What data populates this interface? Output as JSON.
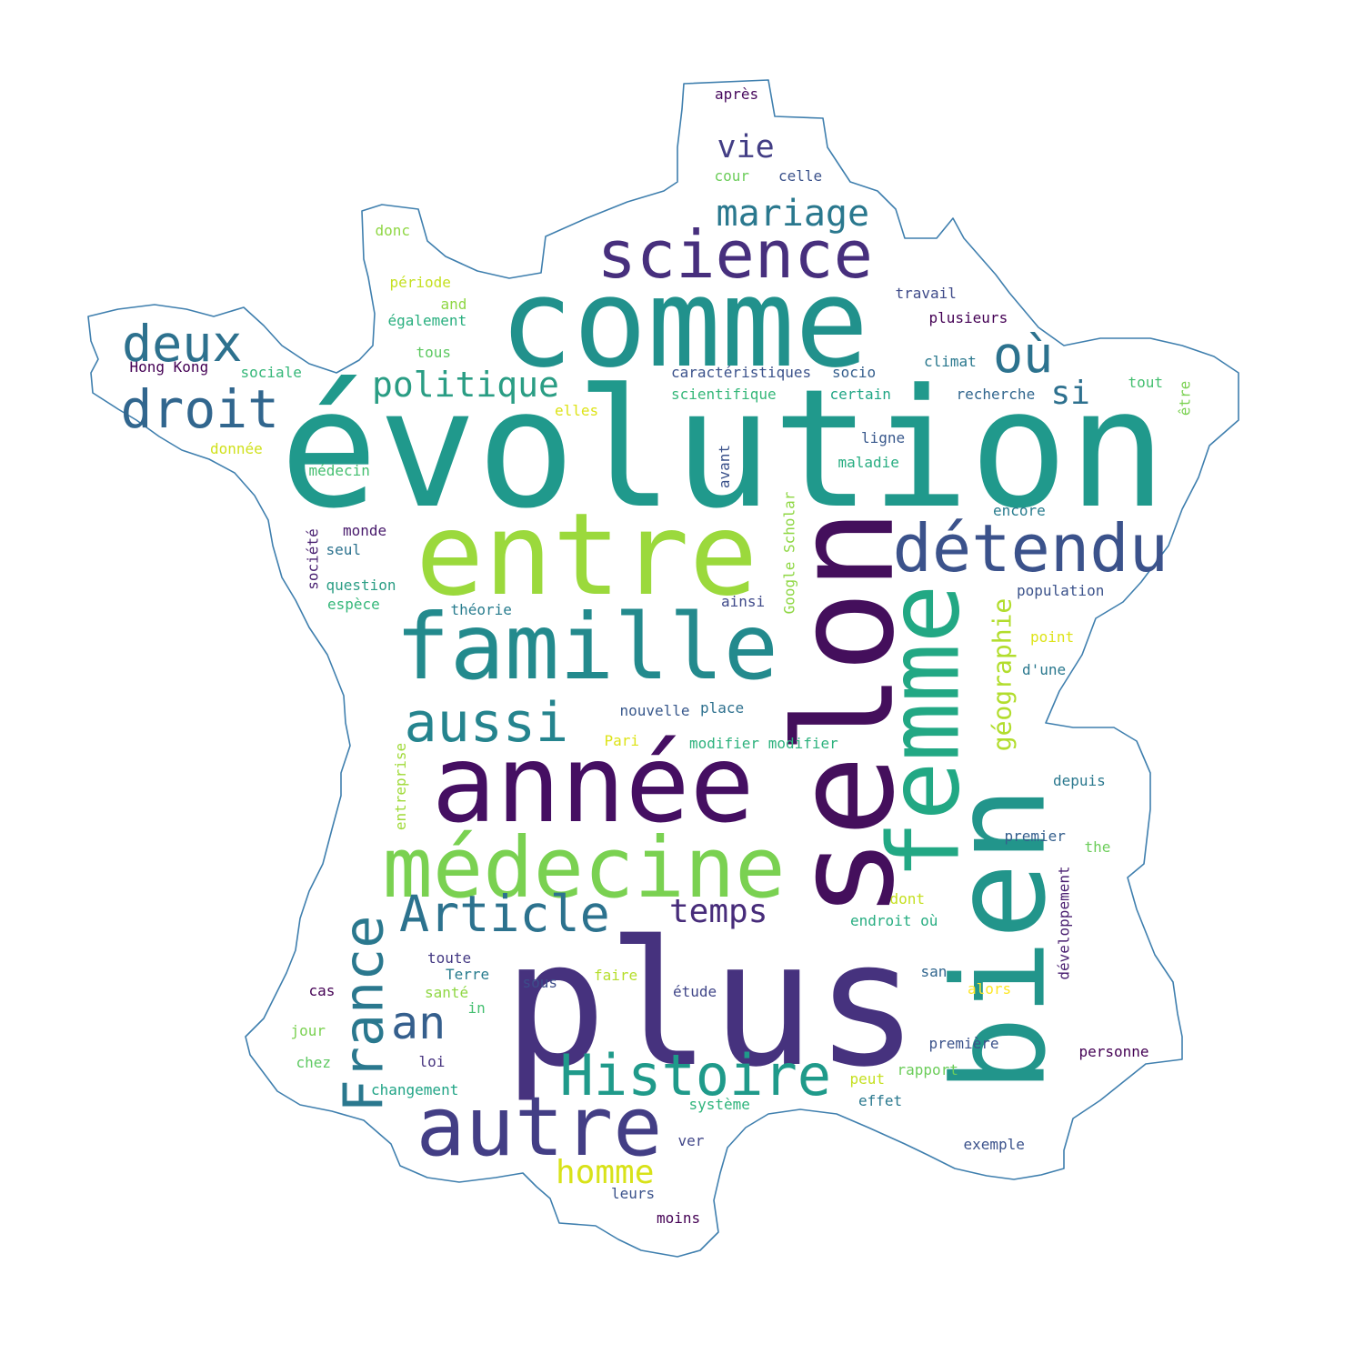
{
  "outline_color": "#3f7fae",
  "words": [
    {
      "text": "évolution",
      "color": "#20998c",
      "rot": 0
    },
    {
      "text": "plus",
      "color": "#46327e",
      "rot": 0
    },
    {
      "text": "comme",
      "color": "#21918c",
      "rot": 0
    },
    {
      "text": "selon",
      "color": "#440f5c",
      "rot": -90
    },
    {
      "text": "entre",
      "color": "#9bd93c",
      "rot": 0
    },
    {
      "text": "année",
      "color": "#450f62",
      "rot": 0
    },
    {
      "text": "famille",
      "color": "#238a8d",
      "rot": 0
    },
    {
      "text": "bien",
      "color": "#22958b",
      "rot": -90
    },
    {
      "text": "médecine",
      "color": "#7ad151",
      "rot": 0
    },
    {
      "text": "femme",
      "color": "#22a884",
      "rot": -90
    },
    {
      "text": "autre",
      "color": "#433e85",
      "rot": 0
    },
    {
      "text": "science",
      "color": "#472f7d",
      "rot": 0
    },
    {
      "text": "détendu",
      "color": "#3b528b",
      "rot": 0
    },
    {
      "text": "Histoire",
      "color": "#1f9a8a",
      "rot": 0
    },
    {
      "text": "France",
      "color": "#2a788e",
      "rot": -90
    },
    {
      "text": "droit",
      "color": "#31668e",
      "rot": 0
    },
    {
      "text": "aussi",
      "color": "#25848e",
      "rot": 0
    },
    {
      "text": "Article",
      "color": "#2c728e",
      "rot": 0
    },
    {
      "text": "deux",
      "color": "#2d718e",
      "rot": 0
    },
    {
      "text": "où",
      "color": "#2c728e",
      "rot": 0
    },
    {
      "text": "an",
      "color": "#355f8d",
      "rot": 0
    },
    {
      "text": "politique",
      "color": "#2a9d84",
      "rot": 0
    },
    {
      "text": "mariage",
      "color": "#2a788e",
      "rot": 0
    },
    {
      "text": "géographie",
      "color": "#b2dd2d",
      "rot": -90
    },
    {
      "text": "vie",
      "color": "#433e85",
      "rot": 0
    },
    {
      "text": "temps",
      "color": "#472c7a",
      "rot": 0
    },
    {
      "text": "homme",
      "color": "#d8e219",
      "rot": 0
    },
    {
      "text": "si",
      "color": "#2d708e",
      "rot": 0
    },
    {
      "text": "après",
      "color": "#46085c",
      "rot": 0
    },
    {
      "text": "cour",
      "color": "#6ccd5a",
      "rot": 0
    },
    {
      "text": "celle",
      "color": "#3b528b",
      "rot": 0
    },
    {
      "text": "donc",
      "color": "#8fd744",
      "rot": 0
    },
    {
      "text": "période",
      "color": "#c5e021",
      "rot": 0
    },
    {
      "text": "and",
      "color": "#8fd744",
      "rot": 0
    },
    {
      "text": "également",
      "color": "#29af7f",
      "rot": 0
    },
    {
      "text": "travail",
      "color": "#3e4a89",
      "rot": 0
    },
    {
      "text": "plusieurs",
      "color": "#440154",
      "rot": 0
    },
    {
      "text": "tous",
      "color": "#5ec962",
      "rot": 0
    },
    {
      "text": "Hong Kong",
      "color": "#440154",
      "rot": 0
    },
    {
      "text": "sociale",
      "color": "#35b779",
      "rot": 0
    },
    {
      "text": "caractéristiques",
      "color": "#3b528b",
      "rot": 0
    },
    {
      "text": "socio",
      "color": "#355f8d",
      "rot": 0
    },
    {
      "text": "climat",
      "color": "#2a788e",
      "rot": 0
    },
    {
      "text": "tout",
      "color": "#44bf70",
      "rot": 0
    },
    {
      "text": "être",
      "color": "#7ad151",
      "rot": -90
    },
    {
      "text": "scientifique",
      "color": "#35b779",
      "rot": 0
    },
    {
      "text": "certain",
      "color": "#21a685",
      "rot": 0
    },
    {
      "text": "recherche",
      "color": "#31668e",
      "rot": 0
    },
    {
      "text": "elles",
      "color": "#dde318",
      "rot": 0
    },
    {
      "text": "ligne",
      "color": "#38588c",
      "rot": 0
    },
    {
      "text": "donnée",
      "color": "#d0e11c",
      "rot": 0
    },
    {
      "text": "médecin",
      "color": "#44bf70",
      "rot": 0
    },
    {
      "text": "maladie",
      "color": "#27ad81",
      "rot": 0
    },
    {
      "text": "avant",
      "color": "#3b528b",
      "rot": -90
    },
    {
      "text": "Google Scholar",
      "color": "#8fd744",
      "rot": -90
    },
    {
      "text": "encore",
      "color": "#287c8e",
      "rot": 0
    },
    {
      "text": "société",
      "color": "#481f70",
      "rot": -90
    },
    {
      "text": "monde",
      "color": "#481a6c",
      "rot": 0
    },
    {
      "text": "seul",
      "color": "#2c728e",
      "rot": 0
    },
    {
      "text": "question",
      "color": "#2a9d84",
      "rot": 0
    },
    {
      "text": "espèce",
      "color": "#35b779",
      "rot": 0
    },
    {
      "text": "théorie",
      "color": "#287c8e",
      "rot": 0
    },
    {
      "text": "ainsi",
      "color": "#3e4989",
      "rot": 0
    },
    {
      "text": "population",
      "color": "#3b528b",
      "rot": 0
    },
    {
      "text": "point",
      "color": "#dde318",
      "rot": 0
    },
    {
      "text": "d'une",
      "color": "#2a788e",
      "rot": 0
    },
    {
      "text": "nouvelle",
      "color": "#38588c",
      "rot": 0
    },
    {
      "text": "place",
      "color": "#2d708e",
      "rot": 0
    },
    {
      "text": "Pari",
      "color": "#dde318",
      "rot": 0
    },
    {
      "text": "modifier modifier",
      "color": "#2db27d",
      "rot": 0
    },
    {
      "text": "entreprise",
      "color": "#a0da39",
      "rot": -90
    },
    {
      "text": "depuis",
      "color": "#2a788e",
      "rot": 0
    },
    {
      "text": "premier",
      "color": "#355f8d",
      "rot": 0
    },
    {
      "text": "the",
      "color": "#6ccd5a",
      "rot": 0
    },
    {
      "text": "développement",
      "color": "#481d6f",
      "rot": -90
    },
    {
      "text": "dont",
      "color": "#c5e021",
      "rot": 0
    },
    {
      "text": "endroit où",
      "color": "#27ad81",
      "rot": 0
    },
    {
      "text": "toute",
      "color": "#443983",
      "rot": 0
    },
    {
      "text": "Terre",
      "color": "#287c8e",
      "rot": 0
    },
    {
      "text": "cas",
      "color": "#440154",
      "rot": 0
    },
    {
      "text": "santé",
      "color": "#8fd744",
      "rot": 0
    },
    {
      "text": "in",
      "color": "#44bf70",
      "rot": 0
    },
    {
      "text": "sous",
      "color": "#3d4d8a",
      "rot": 0
    },
    {
      "text": "faire",
      "color": "#b5de2b",
      "rot": 0
    },
    {
      "text": "étude",
      "color": "#404688",
      "rot": 0
    },
    {
      "text": "san",
      "color": "#31668e",
      "rot": 0
    },
    {
      "text": "alors",
      "color": "#fde725",
      "rot": 0
    },
    {
      "text": "jour",
      "color": "#7ad151",
      "rot": 0
    },
    {
      "text": "loi",
      "color": "#46337f",
      "rot": 0
    },
    {
      "text": "première",
      "color": "#3b528b",
      "rot": 0
    },
    {
      "text": "personne",
      "color": "#440154",
      "rot": 0
    },
    {
      "text": "chez",
      "color": "#5ec962",
      "rot": 0
    },
    {
      "text": "changement",
      "color": "#20a486",
      "rot": 0
    },
    {
      "text": "peut",
      "color": "#c5e021",
      "rot": 0
    },
    {
      "text": "rapport",
      "color": "#6ccd5a",
      "rot": 0
    },
    {
      "text": "système",
      "color": "#2fb47c",
      "rot": 0
    },
    {
      "text": "effet",
      "color": "#2a788e",
      "rot": 0
    },
    {
      "text": "ver",
      "color": "#404688",
      "rot": 0
    },
    {
      "text": "exemple",
      "color": "#3b528b",
      "rot": 0
    },
    {
      "text": "leurs",
      "color": "#3b528b",
      "rot": 0
    },
    {
      "text": "moins",
      "color": "#440154",
      "rot": 0
    }
  ]
}
